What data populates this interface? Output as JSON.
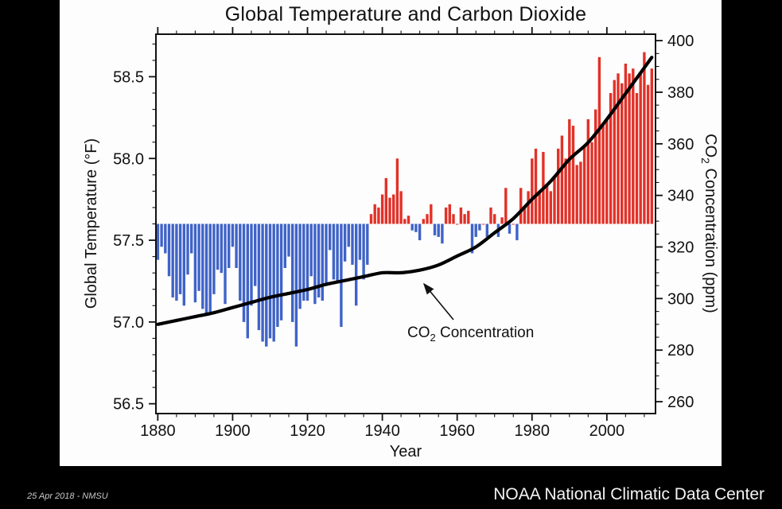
{
  "slide": {
    "footer_left": "25 Apr 2018 - NMSU",
    "footer_right": "NOAA National Climatic Data Center"
  },
  "chart_data": {
    "type": "bar+line",
    "title": "Global Temperature and Carbon Dioxide",
    "xlabel": "Year",
    "y_left_label": "Global Temperature (°F)",
    "y_right_label": "CO2 Concentration (ppm)",
    "annotation_label": "CO2 Concentration",
    "baseline_f": 57.6,
    "y_left_ticks": [
      56.5,
      57.0,
      57.5,
      58.0,
      58.5
    ],
    "y_left_range": [
      56.44,
      58.76
    ],
    "y_left_minor_step": 0.1,
    "y_right_ticks": [
      260,
      280,
      300,
      320,
      340,
      360,
      380,
      400
    ],
    "y_right_range": [
      255.4,
      402.5
    ],
    "y_right_minor_step": 5,
    "x_ticks": [
      1880,
      1900,
      1920,
      1940,
      1960,
      1980,
      2000
    ],
    "x_range": [
      1879.5,
      2013
    ],
    "x_minor_step": 5,
    "grid": false,
    "legend": "none",
    "colors": {
      "warm_bar": "#e23128",
      "cool_bar": "#3f63c8",
      "co2_line": "#000000"
    },
    "temperature_series": {
      "name": "Global annual mean temperature (°F), bars vs 57.6°F baseline",
      "year_start": 1880,
      "year_end": 2012,
      "values": [
        57.38,
        57.46,
        57.42,
        57.28,
        57.15,
        57.13,
        57.17,
        57.1,
        57.29,
        57.42,
        57.12,
        57.19,
        57.08,
        57.05,
        57.06,
        57.17,
        57.32,
        57.3,
        57.11,
        57.33,
        57.46,
        57.33,
        57.13,
        57.0,
        56.9,
        57.1,
        57.22,
        56.95,
        56.88,
        56.85,
        56.9,
        56.88,
        56.97,
        57.01,
        57.33,
        57.4,
        57.0,
        56.85,
        57.08,
        57.13,
        57.13,
        57.28,
        57.11,
        57.15,
        57.13,
        57.22,
        57.44,
        57.26,
        57.24,
        56.97,
        57.37,
        57.46,
        57.35,
        57.1,
        57.38,
        57.26,
        57.35,
        57.66,
        57.72,
        57.7,
        57.78,
        57.88,
        57.76,
        57.78,
        58.0,
        57.8,
        57.63,
        57.65,
        57.56,
        57.55,
        57.5,
        57.63,
        57.66,
        57.72,
        57.53,
        57.52,
        57.48,
        57.7,
        57.72,
        57.66,
        57.6,
        57.7,
        57.66,
        57.68,
        57.42,
        57.52,
        57.56,
        57.6,
        57.52,
        57.7,
        57.66,
        57.52,
        57.64,
        57.82,
        57.54,
        57.6,
        57.5,
        57.82,
        57.7,
        57.8,
        58.0,
        58.06,
        57.8,
        58.04,
        57.84,
        57.8,
        57.88,
        58.06,
        58.14,
        58.0,
        58.24,
        58.2,
        57.96,
        57.98,
        58.08,
        58.24,
        58.1,
        58.3,
        58.62,
        58.22,
        58.24,
        58.4,
        58.48,
        58.52,
        58.46,
        58.58,
        58.52,
        58.55,
        58.4,
        58.52,
        58.65,
        58.45,
        58.55
      ]
    },
    "co2_series": {
      "name": "CO2 concentration (ppm)",
      "points": [
        [
          1880,
          290
        ],
        [
          1885,
          291.5
        ],
        [
          1890,
          293
        ],
        [
          1895,
          294.5
        ],
        [
          1900,
          296.5
        ],
        [
          1905,
          298.5
        ],
        [
          1910,
          300.5
        ],
        [
          1915,
          302
        ],
        [
          1920,
          303.5
        ],
        [
          1925,
          305.5
        ],
        [
          1930,
          307
        ],
        [
          1935,
          308.5
        ],
        [
          1940,
          310
        ],
        [
          1945,
          310
        ],
        [
          1950,
          311
        ],
        [
          1955,
          313
        ],
        [
          1960,
          316.5
        ],
        [
          1965,
          320
        ],
        [
          1970,
          325.5
        ],
        [
          1975,
          331
        ],
        [
          1980,
          338.5
        ],
        [
          1985,
          345.5
        ],
        [
          1990,
          354
        ],
        [
          1995,
          360.5
        ],
        [
          2000,
          369.5
        ],
        [
          2005,
          379.5
        ],
        [
          2010,
          389.5
        ],
        [
          2012,
          393.5
        ]
      ]
    }
  }
}
